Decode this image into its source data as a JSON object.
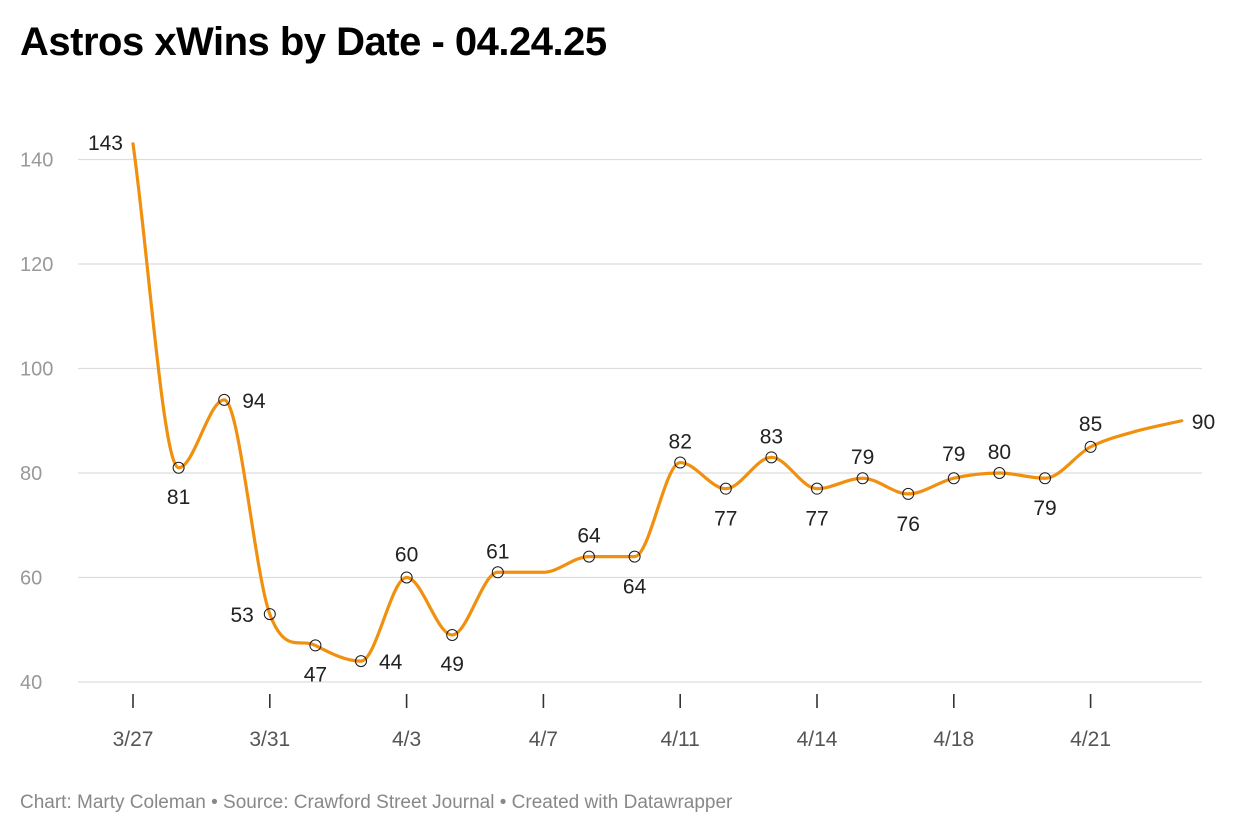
{
  "title": "Astros xWins by Date - 04.24.25",
  "footer": "Chart: Marty Coleman • Source: Crawford Street Journal • Created with Datawrapper",
  "colors": {
    "line": "#f0900e",
    "grid": "#dddddd",
    "axis_text": "#999999"
  },
  "chart_data": {
    "type": "line",
    "title": "Astros xWins by Date - 04.24.25",
    "xlabel": "",
    "ylabel": "",
    "ylim": [
      40,
      145
    ],
    "y_ticks": [
      40,
      60,
      80,
      100,
      120,
      140
    ],
    "x_tick_labels": [
      "3/27",
      "3/31",
      "4/3",
      "4/7",
      "4/11",
      "4/14",
      "4/18",
      "4/21"
    ],
    "grid": true,
    "series": [
      {
        "values": [
          143,
          81,
          94,
          53,
          47,
          44,
          60,
          49,
          61,
          61,
          64,
          64,
          82,
          77,
          83,
          77,
          79,
          76,
          79,
          80,
          79,
          85,
          88,
          90
        ],
        "labels": [
          "143",
          "81",
          "94",
          "53",
          "47",
          "44",
          "60",
          "49",
          "61",
          "",
          "64",
          "64",
          "82",
          "77",
          "83",
          "77",
          "79",
          "76",
          "79",
          "80",
          "79",
          "85",
          "",
          "90"
        ]
      }
    ]
  }
}
